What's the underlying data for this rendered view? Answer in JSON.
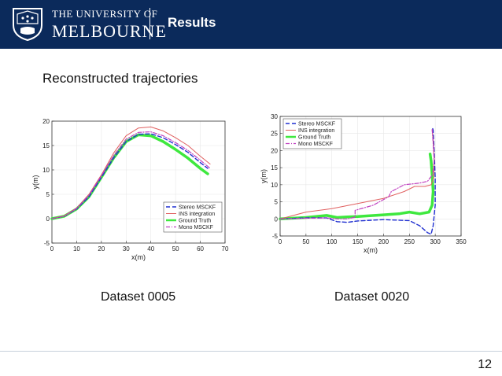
{
  "header": {
    "university_line1": "THE UNIVERSITY OF",
    "university_line2": "MELBOURNE",
    "title": "Results"
  },
  "subtitle": "Reconstructed trajectories",
  "captions": [
    "Dataset 0005",
    "Dataset 0020"
  ],
  "page_number": "12",
  "colors": {
    "header_bg": "#0b2a5b",
    "stereo": "#1f2fd0",
    "ins": "#e06060",
    "ground_truth": "#3ee83e",
    "mono": "#c040c0"
  },
  "chart_data": [
    {
      "type": "line",
      "title": "",
      "xlabel": "x(m)",
      "ylabel": "y(m)",
      "xlim": [
        0,
        70
      ],
      "ylim": [
        -5,
        20
      ],
      "xticks": [
        0,
        10,
        20,
        30,
        40,
        50,
        60,
        70
      ],
      "yticks": [
        -5,
        0,
        5,
        10,
        15,
        20
      ],
      "legend_position": "lower-right",
      "series": [
        {
          "name": "Stereo MSCKF",
          "style": "dashed",
          "color": "#1f2fd0",
          "points": [
            [
              0,
              0
            ],
            [
              5,
              0.5
            ],
            [
              10,
              2
            ],
            [
              15,
              4.5
            ],
            [
              20,
              8.5
            ],
            [
              25,
              12.5
            ],
            [
              30,
              15.8
            ],
            [
              35,
              17.3
            ],
            [
              40,
              17.4
            ],
            [
              45,
              16.6
            ],
            [
              50,
              15.2
            ],
            [
              55,
              13.6
            ],
            [
              60,
              11.5
            ],
            [
              63,
              10.3
            ]
          ]
        },
        {
          "name": "INS integration",
          "style": "solid",
          "color": "#e06060",
          "points": [
            [
              0,
              0
            ],
            [
              5,
              0.6
            ],
            [
              10,
              2.2
            ],
            [
              15,
              5
            ],
            [
              20,
              9
            ],
            [
              25,
              13.5
            ],
            [
              30,
              17
            ],
            [
              35,
              18.6
            ],
            [
              40,
              18.8
            ],
            [
              45,
              18
            ],
            [
              50,
              16.6
            ],
            [
              55,
              15
            ],
            [
              60,
              12.8
            ],
            [
              64,
              11.2
            ]
          ]
        },
        {
          "name": "Ground Truth",
          "style": "thick",
          "color": "#3ee83e",
          "points": [
            [
              0,
              0
            ],
            [
              5,
              0.5
            ],
            [
              10,
              2
            ],
            [
              15,
              4.5
            ],
            [
              20,
              8.5
            ],
            [
              25,
              12.5
            ],
            [
              30,
              15.8
            ],
            [
              35,
              17.2
            ],
            [
              40,
              17
            ],
            [
              45,
              15.8
            ],
            [
              50,
              14.2
            ],
            [
              55,
              12.4
            ],
            [
              60,
              10.3
            ],
            [
              63,
              9.2
            ]
          ]
        },
        {
          "name": "Mono MSCKF",
          "style": "dashdot",
          "color": "#c040c0",
          "points": [
            [
              0,
              0
            ],
            [
              5,
              0.5
            ],
            [
              10,
              2.1
            ],
            [
              15,
              4.8
            ],
            [
              20,
              8.8
            ],
            [
              25,
              13
            ],
            [
              30,
              16.3
            ],
            [
              35,
              17.7
            ],
            [
              40,
              17.8
            ],
            [
              45,
              17
            ],
            [
              50,
              15.6
            ],
            [
              55,
              14
            ],
            [
              60,
              12
            ],
            [
              64,
              10.3
            ]
          ]
        }
      ]
    },
    {
      "type": "line",
      "title": "",
      "xlabel": "x(m)",
      "ylabel": "y(m)",
      "xlim": [
        0,
        350
      ],
      "ylim": [
        -5,
        30
      ],
      "xticks": [
        0,
        50,
        100,
        150,
        200,
        250,
        300,
        350
      ],
      "yticks": [
        -5,
        0,
        5,
        10,
        15,
        20,
        25,
        30
      ],
      "legend_position": "upper-left",
      "series": [
        {
          "name": "Stereo MSCKF",
          "style": "dashed",
          "color": "#1f2fd0",
          "points": [
            [
              0,
              0
            ],
            [
              50,
              0.3
            ],
            [
              90,
              0.3
            ],
            [
              110,
              -0.8
            ],
            [
              130,
              -1
            ],
            [
              150,
              -0.6
            ],
            [
              200,
              -0.2
            ],
            [
              250,
              -0.5
            ],
            [
              270,
              -2
            ],
            [
              285,
              -4
            ],
            [
              292,
              -4.5
            ],
            [
              296,
              -2
            ],
            [
              300,
              4
            ],
            [
              300,
              12
            ],
            [
              298,
              20
            ],
            [
              296,
              26
            ],
            [
              294,
              27
            ]
          ]
        },
        {
          "name": "INS integration",
          "style": "solid",
          "color": "#e06060",
          "points": [
            [
              0,
              0
            ],
            [
              50,
              2
            ],
            [
              100,
              3
            ],
            [
              150,
              4.5
            ],
            [
              200,
              6
            ],
            [
              240,
              8
            ],
            [
              260,
              9.5
            ],
            [
              280,
              9.5
            ],
            [
              292,
              10
            ],
            [
              297,
              12
            ],
            [
              298,
              18
            ],
            [
              296,
              23
            ],
            [
              294,
              26
            ]
          ]
        },
        {
          "name": "Ground Truth",
          "style": "thick",
          "color": "#3ee83e",
          "points": [
            [
              0,
              0
            ],
            [
              50,
              0.4
            ],
            [
              90,
              1
            ],
            [
              110,
              0.4
            ],
            [
              130,
              0.6
            ],
            [
              150,
              0.7
            ],
            [
              200,
              1.2
            ],
            [
              230,
              1.5
            ],
            [
              250,
              2
            ],
            [
              270,
              1.5
            ],
            [
              288,
              2
            ],
            [
              294,
              4
            ],
            [
              296,
              8
            ],
            [
              294,
              13
            ],
            [
              292,
              17
            ],
            [
              290,
              19
            ]
          ]
        },
        {
          "name": "Mono MSCKF",
          "style": "dashdot",
          "color": "#c040c0",
          "points": [
            [
              0,
              0
            ],
            [
              50,
              0.2
            ],
            [
              90,
              0.3
            ],
            [
              110,
              0
            ],
            [
              130,
              0
            ],
            [
              145,
              0.5
            ],
            [
              145,
              2.5
            ],
            [
              180,
              4
            ],
            [
              210,
              6.5
            ],
            [
              215,
              8
            ],
            [
              240,
              10
            ],
            [
              270,
              10.5
            ],
            [
              285,
              11
            ],
            [
              295,
              13
            ],
            [
              298,
              17
            ],
            [
              296,
              22
            ],
            [
              294,
              26.5
            ]
          ]
        }
      ]
    }
  ]
}
